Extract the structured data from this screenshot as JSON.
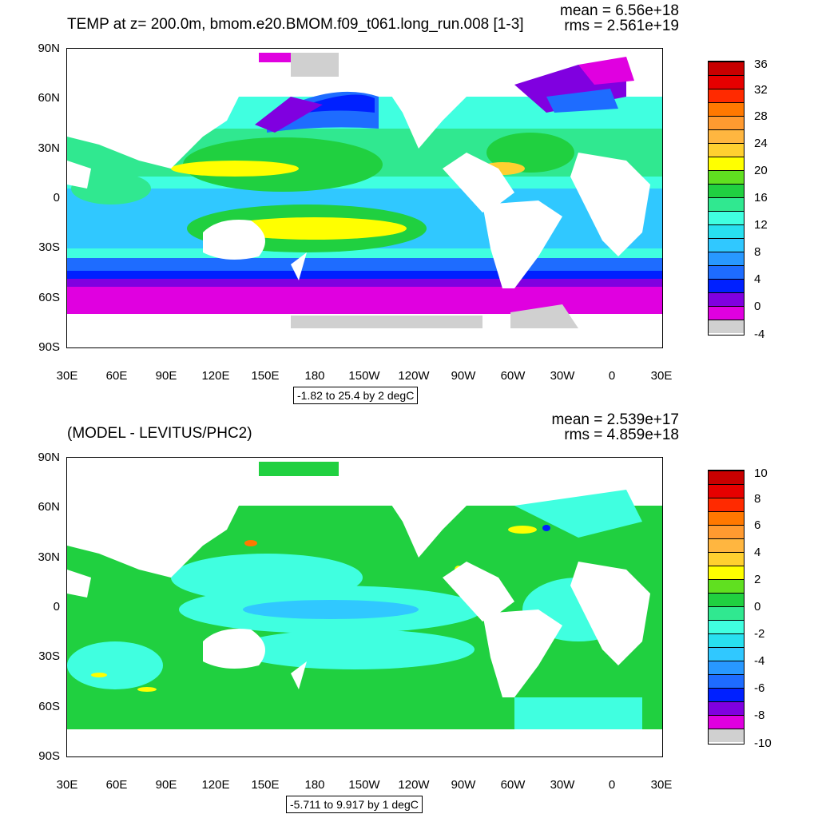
{
  "top": {
    "title": "TEMP at z= 200.0m, bmom.e20.BMOM.f09_t061.long_run.008 [1-3]",
    "mean": "mean = 6.56e+18",
    "rms": "rms = 2.561e+19",
    "info": "-1.82 to 25.4 by 2 degC",
    "lat_labels": [
      "90N",
      "60N",
      "30N",
      "0",
      "30S",
      "60S",
      "90S"
    ],
    "lon_labels": [
      "30E",
      "60E",
      "90E",
      "120E",
      "150E",
      "180",
      "150W",
      "120W",
      "90W",
      "60W",
      "30W",
      "0",
      "30E"
    ],
    "colorbar": {
      "labels": [
        "36",
        "32",
        "28",
        "24",
        "20",
        "16",
        "12",
        "8",
        "4",
        "0",
        "-4"
      ],
      "colors": [
        "#c80000",
        "#e60000",
        "#ff2a00",
        "#ff7800",
        "#ff9a30",
        "#ffb640",
        "#ffd030",
        "#ffff00",
        "#60e020",
        "#20d040",
        "#30e890",
        "#40ffe0",
        "#28e0f0",
        "#30c8ff",
        "#2898ff",
        "#1e6cff",
        "#0020ff",
        "#8000e0",
        "#e000e0",
        "#d0d0d0",
        "#787878"
      ]
    }
  },
  "bottom": {
    "title": "(MODEL - LEVITUS/PHC2)",
    "mean": "mean = 2.539e+17",
    "rms": "rms = 4.859e+18",
    "info": "-5.711 to 9.917 by 1 degC",
    "lat_labels": [
      "90N",
      "60N",
      "30N",
      "0",
      "30S",
      "60S",
      "90S"
    ],
    "lon_labels": [
      "30E",
      "60E",
      "90E",
      "120E",
      "150E",
      "180",
      "150W",
      "120W",
      "90W",
      "60W",
      "30W",
      "0",
      "30E"
    ],
    "colorbar": {
      "labels": [
        "10",
        "8",
        "6",
        "4",
        "2",
        "0",
        "-2",
        "-4",
        "-6",
        "-8",
        "-10"
      ],
      "colors": [
        "#c80000",
        "#e60000",
        "#ff2a00",
        "#ff7800",
        "#ff9a30",
        "#ffb640",
        "#ffd030",
        "#ffff00",
        "#60e020",
        "#20d040",
        "#30e890",
        "#40ffe0",
        "#28e0f0",
        "#30c8ff",
        "#2898ff",
        "#1e6cff",
        "#0020ff",
        "#8000e0",
        "#e000e0",
        "#d0d0d0",
        "#787878"
      ]
    }
  }
}
